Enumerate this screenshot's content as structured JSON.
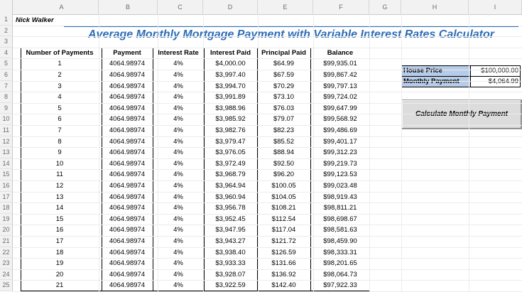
{
  "sheet": {
    "columns": [
      "A",
      "B",
      "C",
      "D",
      "E",
      "F",
      "G",
      "H",
      "I"
    ],
    "rows": [
      "1",
      "2",
      "3",
      "4",
      "5",
      "6",
      "7",
      "8",
      "9",
      "10",
      "11",
      "12",
      "13",
      "14",
      "15",
      "16",
      "17",
      "18",
      "19",
      "20",
      "21",
      "22",
      "23",
      "24",
      "25"
    ],
    "author": "Nick Walker",
    "title": "Average Monthly Mortgage Payment with Variable Interest Rates Calculator"
  },
  "table": {
    "headers": [
      "Number of Payments",
      "Payment",
      "Interest Rate",
      "Interest Paid",
      "Principal Paid",
      "Balance"
    ],
    "rows": [
      [
        "1",
        "4064.98974",
        "4%",
        "$4,000.00",
        "$64.99",
        "$99,935.01"
      ],
      [
        "2",
        "4064.98974",
        "4%",
        "$3,997.40",
        "$67.59",
        "$99,867.42"
      ],
      [
        "3",
        "4064.98974",
        "4%",
        "$3,994.70",
        "$70.29",
        "$99,797.13"
      ],
      [
        "4",
        "4064.98974",
        "4%",
        "$3,991.89",
        "$73.10",
        "$99,724.02"
      ],
      [
        "5",
        "4064.98974",
        "4%",
        "$3,988.96",
        "$76.03",
        "$99,647.99"
      ],
      [
        "6",
        "4064.98974",
        "4%",
        "$3,985.92",
        "$79.07",
        "$99,568.92"
      ],
      [
        "7",
        "4064.98974",
        "4%",
        "$3,982.76",
        "$82.23",
        "$99,486.69"
      ],
      [
        "8",
        "4064.98974",
        "4%",
        "$3,979.47",
        "$85.52",
        "$99,401.17"
      ],
      [
        "9",
        "4064.98974",
        "4%",
        "$3,976.05",
        "$88.94",
        "$99,312.23"
      ],
      [
        "10",
        "4064.98974",
        "4%",
        "$3,972.49",
        "$92.50",
        "$99,219.73"
      ],
      [
        "11",
        "4064.98974",
        "4%",
        "$3,968.79",
        "$96.20",
        "$99,123.53"
      ],
      [
        "12",
        "4064.98974",
        "4%",
        "$3,964.94",
        "$100.05",
        "$99,023.48"
      ],
      [
        "13",
        "4064.98974",
        "4%",
        "$3,960.94",
        "$104.05",
        "$98,919.43"
      ],
      [
        "14",
        "4064.98974",
        "4%",
        "$3,956.78",
        "$108.21",
        "$98,811.21"
      ],
      [
        "15",
        "4064.98974",
        "4%",
        "$3,952.45",
        "$112.54",
        "$98,698.67"
      ],
      [
        "16",
        "4064.98974",
        "4%",
        "$3,947.95",
        "$117.04",
        "$98,581.63"
      ],
      [
        "17",
        "4064.98974",
        "4%",
        "$3,943.27",
        "$121.72",
        "$98,459.90"
      ],
      [
        "18",
        "4064.98974",
        "4%",
        "$3,938.40",
        "$126.59",
        "$98,333.31"
      ],
      [
        "19",
        "4064.98974",
        "4%",
        "$3,933.33",
        "$131.66",
        "$98,201.65"
      ],
      [
        "20",
        "4064.98974",
        "4%",
        "$3,928.07",
        "$136.92",
        "$98,064.73"
      ],
      [
        "21",
        "4064.98974",
        "4%",
        "$3,922.59",
        "$142.40",
        "$97,922.33"
      ]
    ]
  },
  "inputs": {
    "house_price_label": "House Price",
    "house_price_value": "$100,000.00",
    "monthly_payment_label": "Monthly Payment",
    "monthly_payment_value": "$4,064.99"
  },
  "button": {
    "label": "Calculate Monthly Payment"
  },
  "colors": {
    "title": "#2e6db5",
    "label_fill": "#b7cce8",
    "button_fill": "#dcdcdc"
  }
}
